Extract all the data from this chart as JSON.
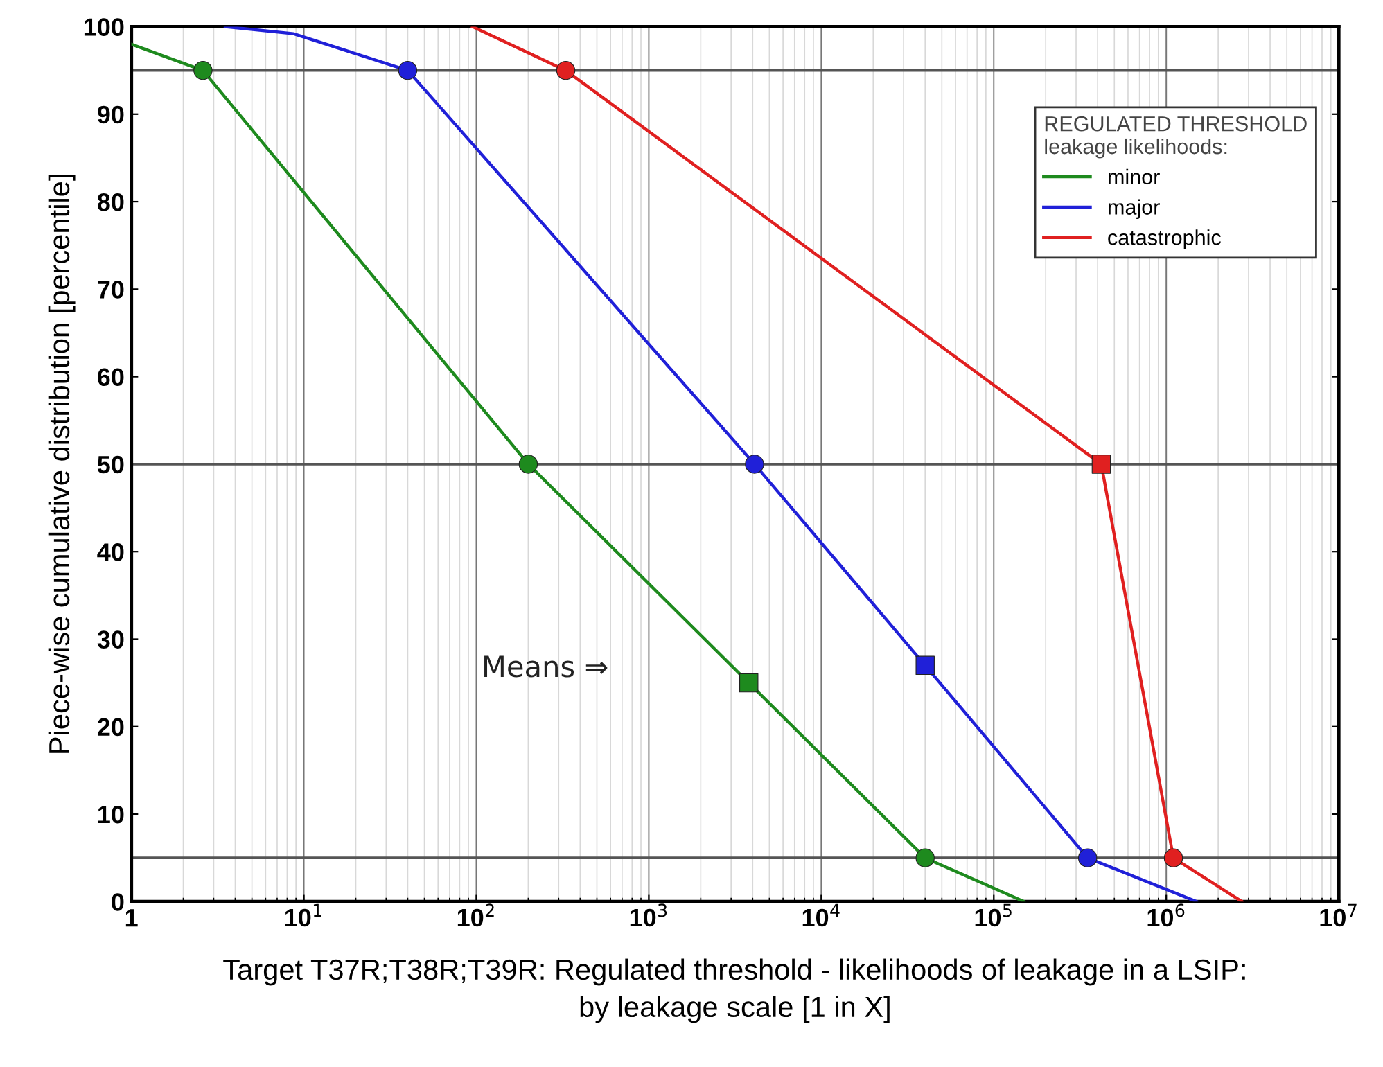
{
  "chart_data": {
    "type": "line",
    "xlabel": "Target T37R;T38R;T39R: Regulated threshold - likelihoods of leakage in a LSIP:\nby leakage scale [1 in X]",
    "ylabel": "Piece-wise cumulative distribution [percentile]",
    "legend_title": "REGULATED THRESHOLD\nleakage likelihoods:",
    "log": "x",
    "grid": "x",
    "legend": "top right",
    "marker": "none",
    "line_style": "solid",
    "xlim": [
      1,
      10000000
    ],
    "ylim": [
      0,
      100
    ],
    "xticks": [
      1,
      {
        "value": 10,
        "label": "10$^{1}$"
      },
      {
        "value": 100,
        "label": "10$^{2}$"
      },
      {
        "value": 1000,
        "label": "10$^{3}$"
      },
      {
        "value": 10000,
        "label": "10$^{4}$"
      },
      {
        "value": 100000,
        "label": "10$^{5}$"
      },
      {
        "value": 1000000,
        "label": "10$^{6}$"
      },
      {
        "value": 10000000,
        "label": "10$^{7}$"
      }
    ],
    "yticks": [
      0,
      10,
      20,
      30,
      40,
      50,
      60,
      70,
      80,
      90,
      100
    ],
    "series": [
      {
        "name": "minor",
        "color": "#1e8a1e",
        "x": [
          1,
          2.6,
          200,
          3800,
          40000,
          150000
        ],
        "values": [
          98,
          95,
          50,
          25,
          5,
          0
        ]
      },
      {
        "name": "major",
        "color": "#2020d8",
        "x": [
          3.5,
          8.7,
          40,
          4100,
          40000,
          350000,
          1500000
        ],
        "values": [
          100,
          99.2,
          95,
          50,
          27,
          5,
          0
        ]
      },
      {
        "name": "catastrophic",
        "color": "#e02020",
        "x": [
          95,
          330,
          420000,
          1100000,
          2750000
        ],
        "values": [
          100,
          95,
          50,
          5,
          0
        ]
      },
      {
        "type": "scatter",
        "marker": "circle",
        "color": "#1e8a1e",
        "x": [
          2.6,
          200,
          40000
        ],
        "values": [
          95,
          50,
          5
        ]
      },
      {
        "type": "scatter",
        "marker": "circle",
        "color": "#2020d8",
        "x": [
          40,
          4100,
          350000
        ],
        "values": [
          95,
          50,
          5
        ]
      },
      {
        "type": "scatter",
        "marker": "circle",
        "color": "#e02020",
        "x": [
          330,
          1100000
        ],
        "values": [
          95,
          5
        ]
      },
      {
        "type": "scatter",
        "marker": "square",
        "color": "#1e8a1e",
        "x": [
          3800
        ],
        "values": [
          25
        ]
      },
      {
        "type": "scatter",
        "marker": "square",
        "color": "#2020d8",
        "x": [
          40000
        ],
        "values": [
          27
        ]
      },
      {
        "type": "scatter",
        "marker": "square",
        "color": "#e02020",
        "x": [
          420000
        ],
        "values": [
          50
        ]
      }
    ],
    "ref_lines": [
      {
        "axis": "y",
        "value": 95,
        "color": "#555555"
      },
      {
        "axis": "y",
        "value": 50,
        "color": "#555555"
      },
      {
        "axis": "y",
        "value": 5,
        "color": "#555555"
      }
    ],
    "annotations": [
      "Means ⇒"
    ]
  }
}
